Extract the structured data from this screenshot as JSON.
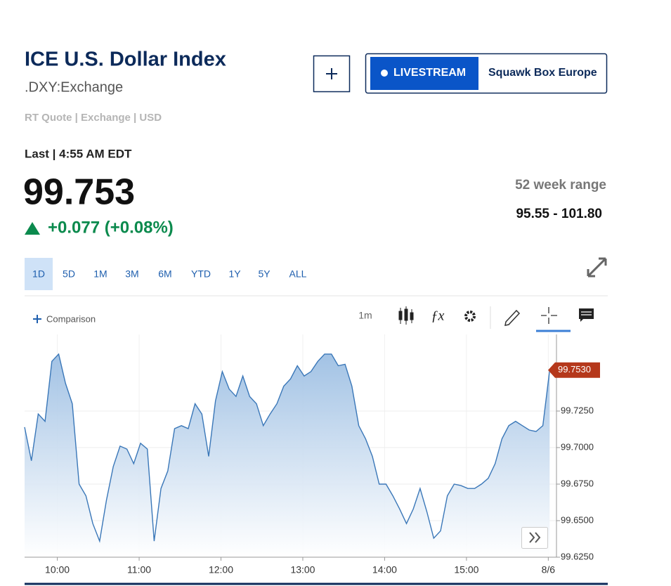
{
  "header": {
    "title": "ICE U.S. Dollar Index",
    "symbol": ".DXY:Exchange",
    "meta": "RT Quote | Exchange | USD",
    "live_label": "LIVESTREAM",
    "live_show": "Squawk Box Europe"
  },
  "quote": {
    "last_time": "Last | 4:55 AM EDT",
    "price": "99.753",
    "change": "+0.077 (+0.08%)",
    "range_label": "52 week range",
    "range_value": "95.55 - 101.80"
  },
  "toolbar": {
    "periods": [
      "1D",
      "5D",
      "1M",
      "3M",
      "6M",
      "YTD",
      "1Y",
      "5Y",
      "ALL"
    ],
    "comparison": "Comparison",
    "interval": "1m"
  },
  "chart_data": {
    "type": "area",
    "color": "#3a77b8",
    "grid": true,
    "x": [
      576,
      581,
      586,
      591,
      596,
      601,
      606,
      611,
      616,
      621,
      626,
      631,
      636,
      641,
      646,
      651,
      656,
      661,
      666,
      671,
      676,
      681,
      686,
      691,
      696,
      701,
      706,
      711,
      716,
      721,
      726,
      731,
      736,
      741,
      746,
      751,
      756,
      761,
      766,
      771,
      776,
      781,
      786,
      791,
      796,
      801,
      806,
      811,
      816,
      821,
      826,
      831,
      836,
      841,
      846,
      851,
      856,
      861,
      866,
      871,
      876,
      881,
      886,
      891,
      896,
      901,
      906,
      911,
      916,
      921,
      926,
      931,
      936,
      941,
      946,
      951,
      956,
      961
    ],
    "values": [
      99.714,
      99.691,
      99.723,
      99.718,
      99.759,
      99.764,
      99.744,
      99.73,
      99.675,
      99.667,
      99.648,
      99.636,
      99.664,
      99.687,
      99.701,
      99.699,
      99.689,
      99.703,
      99.699,
      99.636,
      99.672,
      99.684,
      99.713,
      99.715,
      99.713,
      99.73,
      99.723,
      99.694,
      99.732,
      99.752,
      99.74,
      99.735,
      99.749,
      99.735,
      99.73,
      99.715,
      99.723,
      99.73,
      99.742,
      99.747,
      99.756,
      99.749,
      99.752,
      99.759,
      99.764,
      99.764,
      99.756,
      99.757,
      99.742,
      99.715,
      99.706,
      99.694,
      99.675,
      99.675,
      99.667,
      99.658,
      99.648,
      99.658,
      99.672,
      99.656,
      99.638,
      99.643,
      99.667,
      99.675,
      99.674,
      99.672,
      99.672,
      99.675,
      99.679,
      99.689,
      99.706,
      99.715,
      99.718,
      99.715,
      99.712,
      99.711,
      99.715,
      99.753
    ],
    "xlim": [
      576,
      966
    ],
    "xticks": [
      {
        "value": 600,
        "label": "10:00"
      },
      {
        "value": 660,
        "label": "11:00"
      },
      {
        "value": 720,
        "label": "12:00"
      },
      {
        "value": 780,
        "label": "13:00"
      },
      {
        "value": 840,
        "label": "14:00"
      },
      {
        "value": 900,
        "label": "15:00"
      },
      {
        "value": 960,
        "label": "8/6"
      }
    ],
    "ylim": [
      99.625,
      99.775
    ],
    "yticks": [
      {
        "value": 99.725,
        "label": "99.7250"
      },
      {
        "value": 99.7,
        "label": "99.7000"
      },
      {
        "value": 99.675,
        "label": "99.6750"
      },
      {
        "value": 99.65,
        "label": "99.6500"
      },
      {
        "value": 99.625,
        "label": "99.6250"
      }
    ],
    "last_marker": {
      "value": 99.753,
      "label": "99.7530"
    }
  }
}
